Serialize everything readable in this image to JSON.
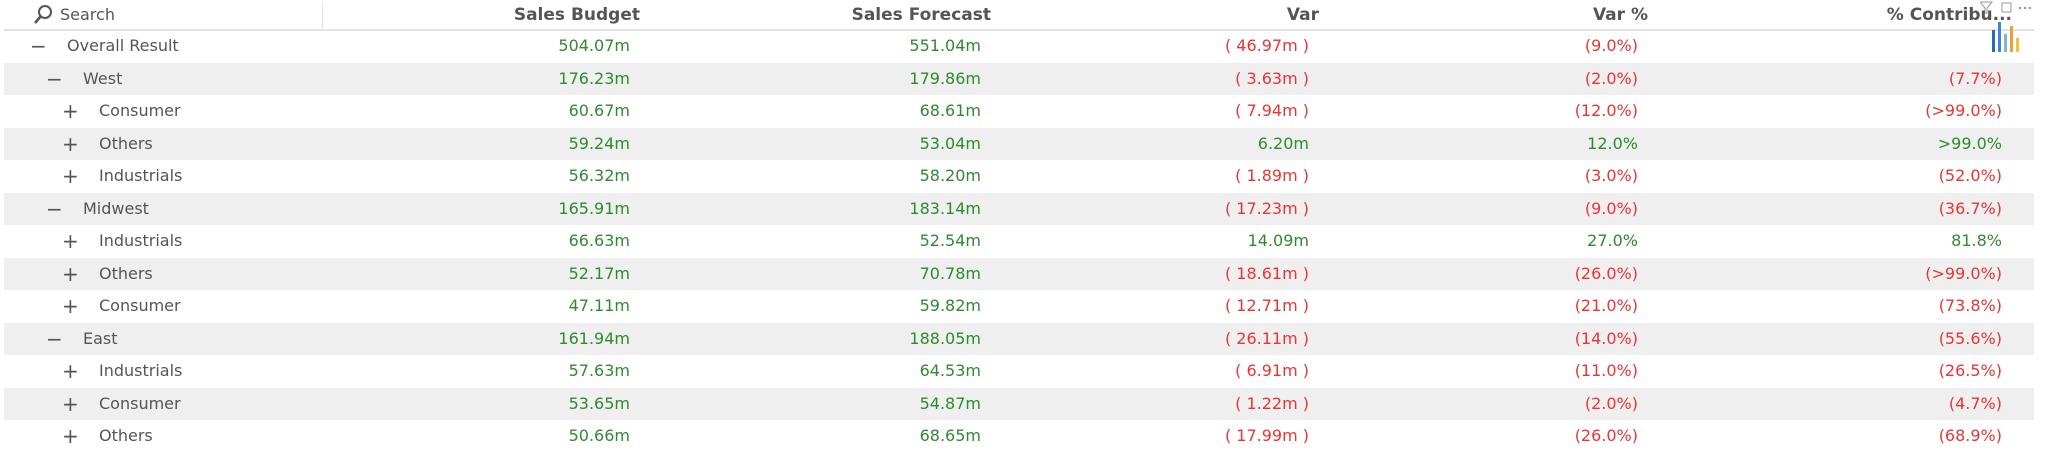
{
  "table": {
    "search": "Search",
    "columns": [
      "Sales Budget",
      "Sales Forecast",
      "Var",
      "Var %",
      "% Contribu..."
    ],
    "root": {
      "toggle": "−",
      "label": "Overall Result",
      "cells": [
        "504.07m",
        "551.04m",
        "( 46.97m )",
        "(9.0%)",
        ""
      ],
      "children": [
        {
          "toggle": "−",
          "label": "West",
          "cells": [
            "176.23m",
            "179.86m",
            "( 3.63m )",
            "(2.0%)",
            "(7.7%)"
          ],
          "children": [
            {
              "toggle": "+",
              "label": "Consumer",
              "cells": [
                "60.67m",
                "68.61m",
                "( 7.94m )",
                "(12.0%)",
                "(>99.0%)"
              ]
            },
            {
              "toggle": "+",
              "label": "Others",
              "cells": [
                "59.24m",
                "53.04m",
                "6.20m",
                "12.0%",
                ">99.0%"
              ]
            },
            {
              "toggle": "+",
              "label": "Industrials",
              "cells": [
                "56.32m",
                "58.20m",
                "( 1.89m )",
                "(3.0%)",
                "(52.0%)"
              ]
            }
          ]
        },
        {
          "toggle": "−",
          "label": "Midwest",
          "cells": [
            "165.91m",
            "183.14m",
            "( 17.23m )",
            "(9.0%)",
            "(36.7%)"
          ],
          "children": [
            {
              "toggle": "+",
              "label": "Industrials",
              "cells": [
                "66.63m",
                "52.54m",
                "14.09m",
                "27.0%",
                "81.8%"
              ]
            },
            {
              "toggle": "+",
              "label": "Others",
              "cells": [
                "52.17m",
                "70.78m",
                "( 18.61m )",
                "(26.0%)",
                "(>99.0%)"
              ]
            },
            {
              "toggle": "+",
              "label": "Consumer",
              "cells": [
                "47.11m",
                "59.82m",
                "( 12.71m )",
                "(21.0%)",
                "(73.8%)"
              ]
            }
          ]
        },
        {
          "toggle": "−",
          "label": "East",
          "cells": [
            "161.94m",
            "188.05m",
            "( 26.11m )",
            "(14.0%)",
            "(55.6%)"
          ],
          "children": [
            {
              "toggle": "+",
              "label": "Industrials",
              "cells": [
                "57.63m",
                "64.53m",
                "( 6.91m )",
                "(11.0%)",
                "(26.5%)"
              ]
            },
            {
              "toggle": "+",
              "label": "Consumer",
              "cells": [
                "53.65m",
                "54.87m",
                "( 1.22m )",
                "(2.0%)",
                "(4.7%)"
              ]
            },
            {
              "toggle": "+",
              "label": "Others",
              "cells": [
                "50.66m",
                "68.65m",
                "( 17.99m )",
                "(26.0%)",
                "(68.9%)"
              ]
            }
          ]
        }
      ]
    }
  }
}
